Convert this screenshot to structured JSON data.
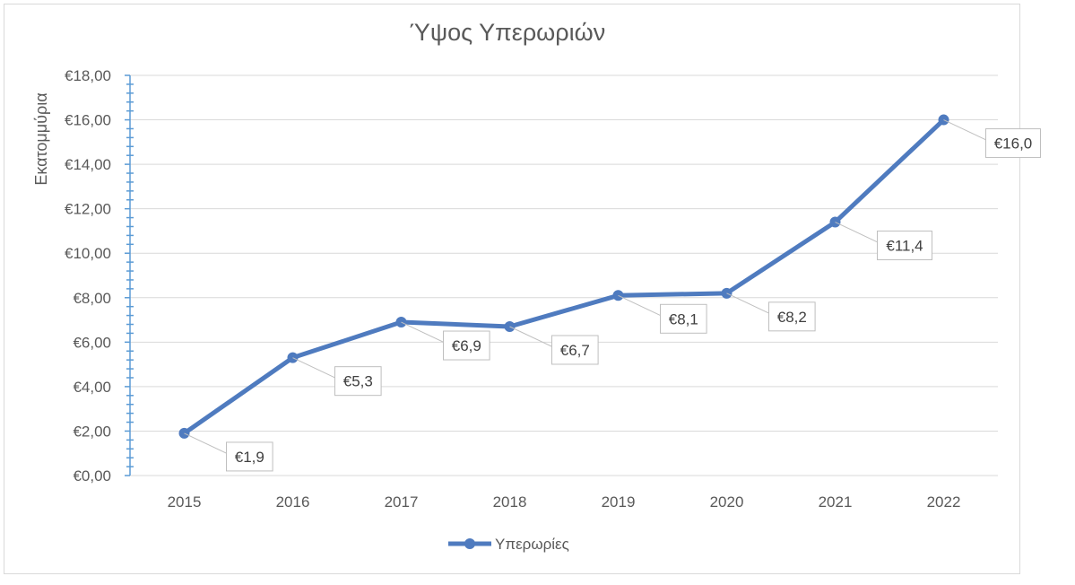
{
  "chart_data": {
    "type": "line",
    "title": "Ύψος Υπερωριών",
    "ylabel": "Εκατομμύρια",
    "xlabel": "",
    "categories": [
      "2015",
      "2016",
      "2017",
      "2018",
      "2019",
      "2020",
      "2021",
      "2022"
    ],
    "series": [
      {
        "name": "Υπερωρίες",
        "values": [
          1.9,
          5.3,
          6.9,
          6.7,
          8.1,
          8.2,
          11.4,
          16.0
        ],
        "data_labels": [
          "€1,9",
          "€5,3",
          "€6,9",
          "€6,7",
          "€8,1",
          "€8,2",
          "€11,4",
          "€16,0"
        ],
        "color": "#4f7bbf"
      }
    ],
    "ylim": [
      0,
      18
    ],
    "y_ticks": [
      "€0,00",
      "€2,00",
      "€4,00",
      "€6,00",
      "€8,00",
      "€10,00",
      "€12,00",
      "€14,00",
      "€16,00",
      "€18,00"
    ],
    "grid": true,
    "legend_position": "bottom"
  },
  "colors": {
    "series": "#4f7bbf",
    "grid": "#d9d9d9",
    "axis_ticks": "#5b9bd5",
    "text": "#595959"
  }
}
